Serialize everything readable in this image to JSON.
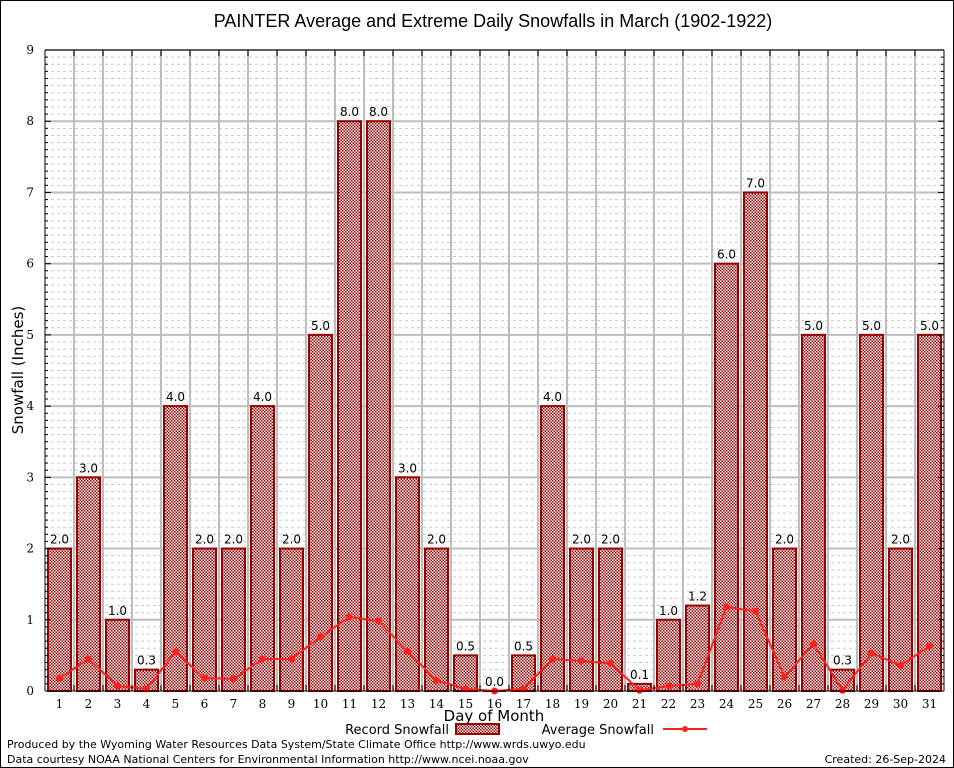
{
  "chart_data": {
    "type": "bar",
    "title": "PAINTER Average and Extreme Daily Snowfalls in March (1902-1922)",
    "xlabel": "Day of Month",
    "ylabel": "Snowfall (Inches)",
    "ylim": [
      0,
      9
    ],
    "yticks": [
      "0",
      "1",
      "2",
      "3",
      "4",
      "5",
      "6",
      "7",
      "8",
      "9"
    ],
    "grid": true,
    "legend_position": "bottom-center",
    "categories": [
      "1",
      "2",
      "3",
      "4",
      "5",
      "6",
      "7",
      "8",
      "9",
      "10",
      "11",
      "12",
      "13",
      "14",
      "15",
      "16",
      "17",
      "18",
      "19",
      "20",
      "21",
      "22",
      "23",
      "24",
      "25",
      "26",
      "27",
      "28",
      "29",
      "30",
      "31"
    ],
    "series": [
      {
        "name": "Record Snowfall",
        "type": "bar",
        "color": "#990000",
        "values": [
          2.0,
          3.0,
          1.0,
          0.3,
          4.0,
          2.0,
          2.0,
          4.0,
          2.0,
          5.0,
          8.0,
          8.0,
          3.0,
          2.0,
          0.5,
          0.0,
          0.5,
          4.0,
          2.0,
          2.0,
          0.1,
          1.0,
          1.2,
          6.0,
          7.0,
          2.0,
          5.0,
          0.3,
          5.0,
          2.0,
          5.0
        ],
        "labels": [
          "2.0",
          "3.0",
          "1.0",
          "0.3",
          "4.0",
          "2.0",
          "2.0",
          "4.0",
          "2.0",
          "5.0",
          "8.0",
          "8.0",
          "3.0",
          "2.0",
          "0.5",
          "0.0",
          "0.5",
          "4.0",
          "2.0",
          "2.0",
          "0.1",
          "1.0",
          "1.2",
          "6.0",
          "7.0",
          "2.0",
          "5.0",
          "0.3",
          "5.0",
          "2.0",
          "5.0"
        ]
      },
      {
        "name": "Average Snowfall",
        "type": "line",
        "color": "#ff2020",
        "values": [
          0.18,
          0.45,
          0.07,
          0.03,
          0.55,
          0.18,
          0.17,
          0.45,
          0.45,
          0.76,
          1.04,
          0.98,
          0.56,
          0.15,
          0.03,
          0.0,
          0.03,
          0.45,
          0.42,
          0.39,
          0.01,
          0.07,
          0.1,
          1.18,
          1.12,
          0.2,
          0.66,
          0.01,
          0.53,
          0.36,
          0.63
        ]
      }
    ]
  },
  "footer": {
    "produced_by": "Produced by the Wyoming Water Resources Data System/State Climate Office http://www.wrds.uwyo.edu",
    "courtesy": "Data courtesy NOAA National Centers for Environmental Information http://www.ncei.noaa.gov",
    "created": "Created: 26-Sep-2024"
  }
}
